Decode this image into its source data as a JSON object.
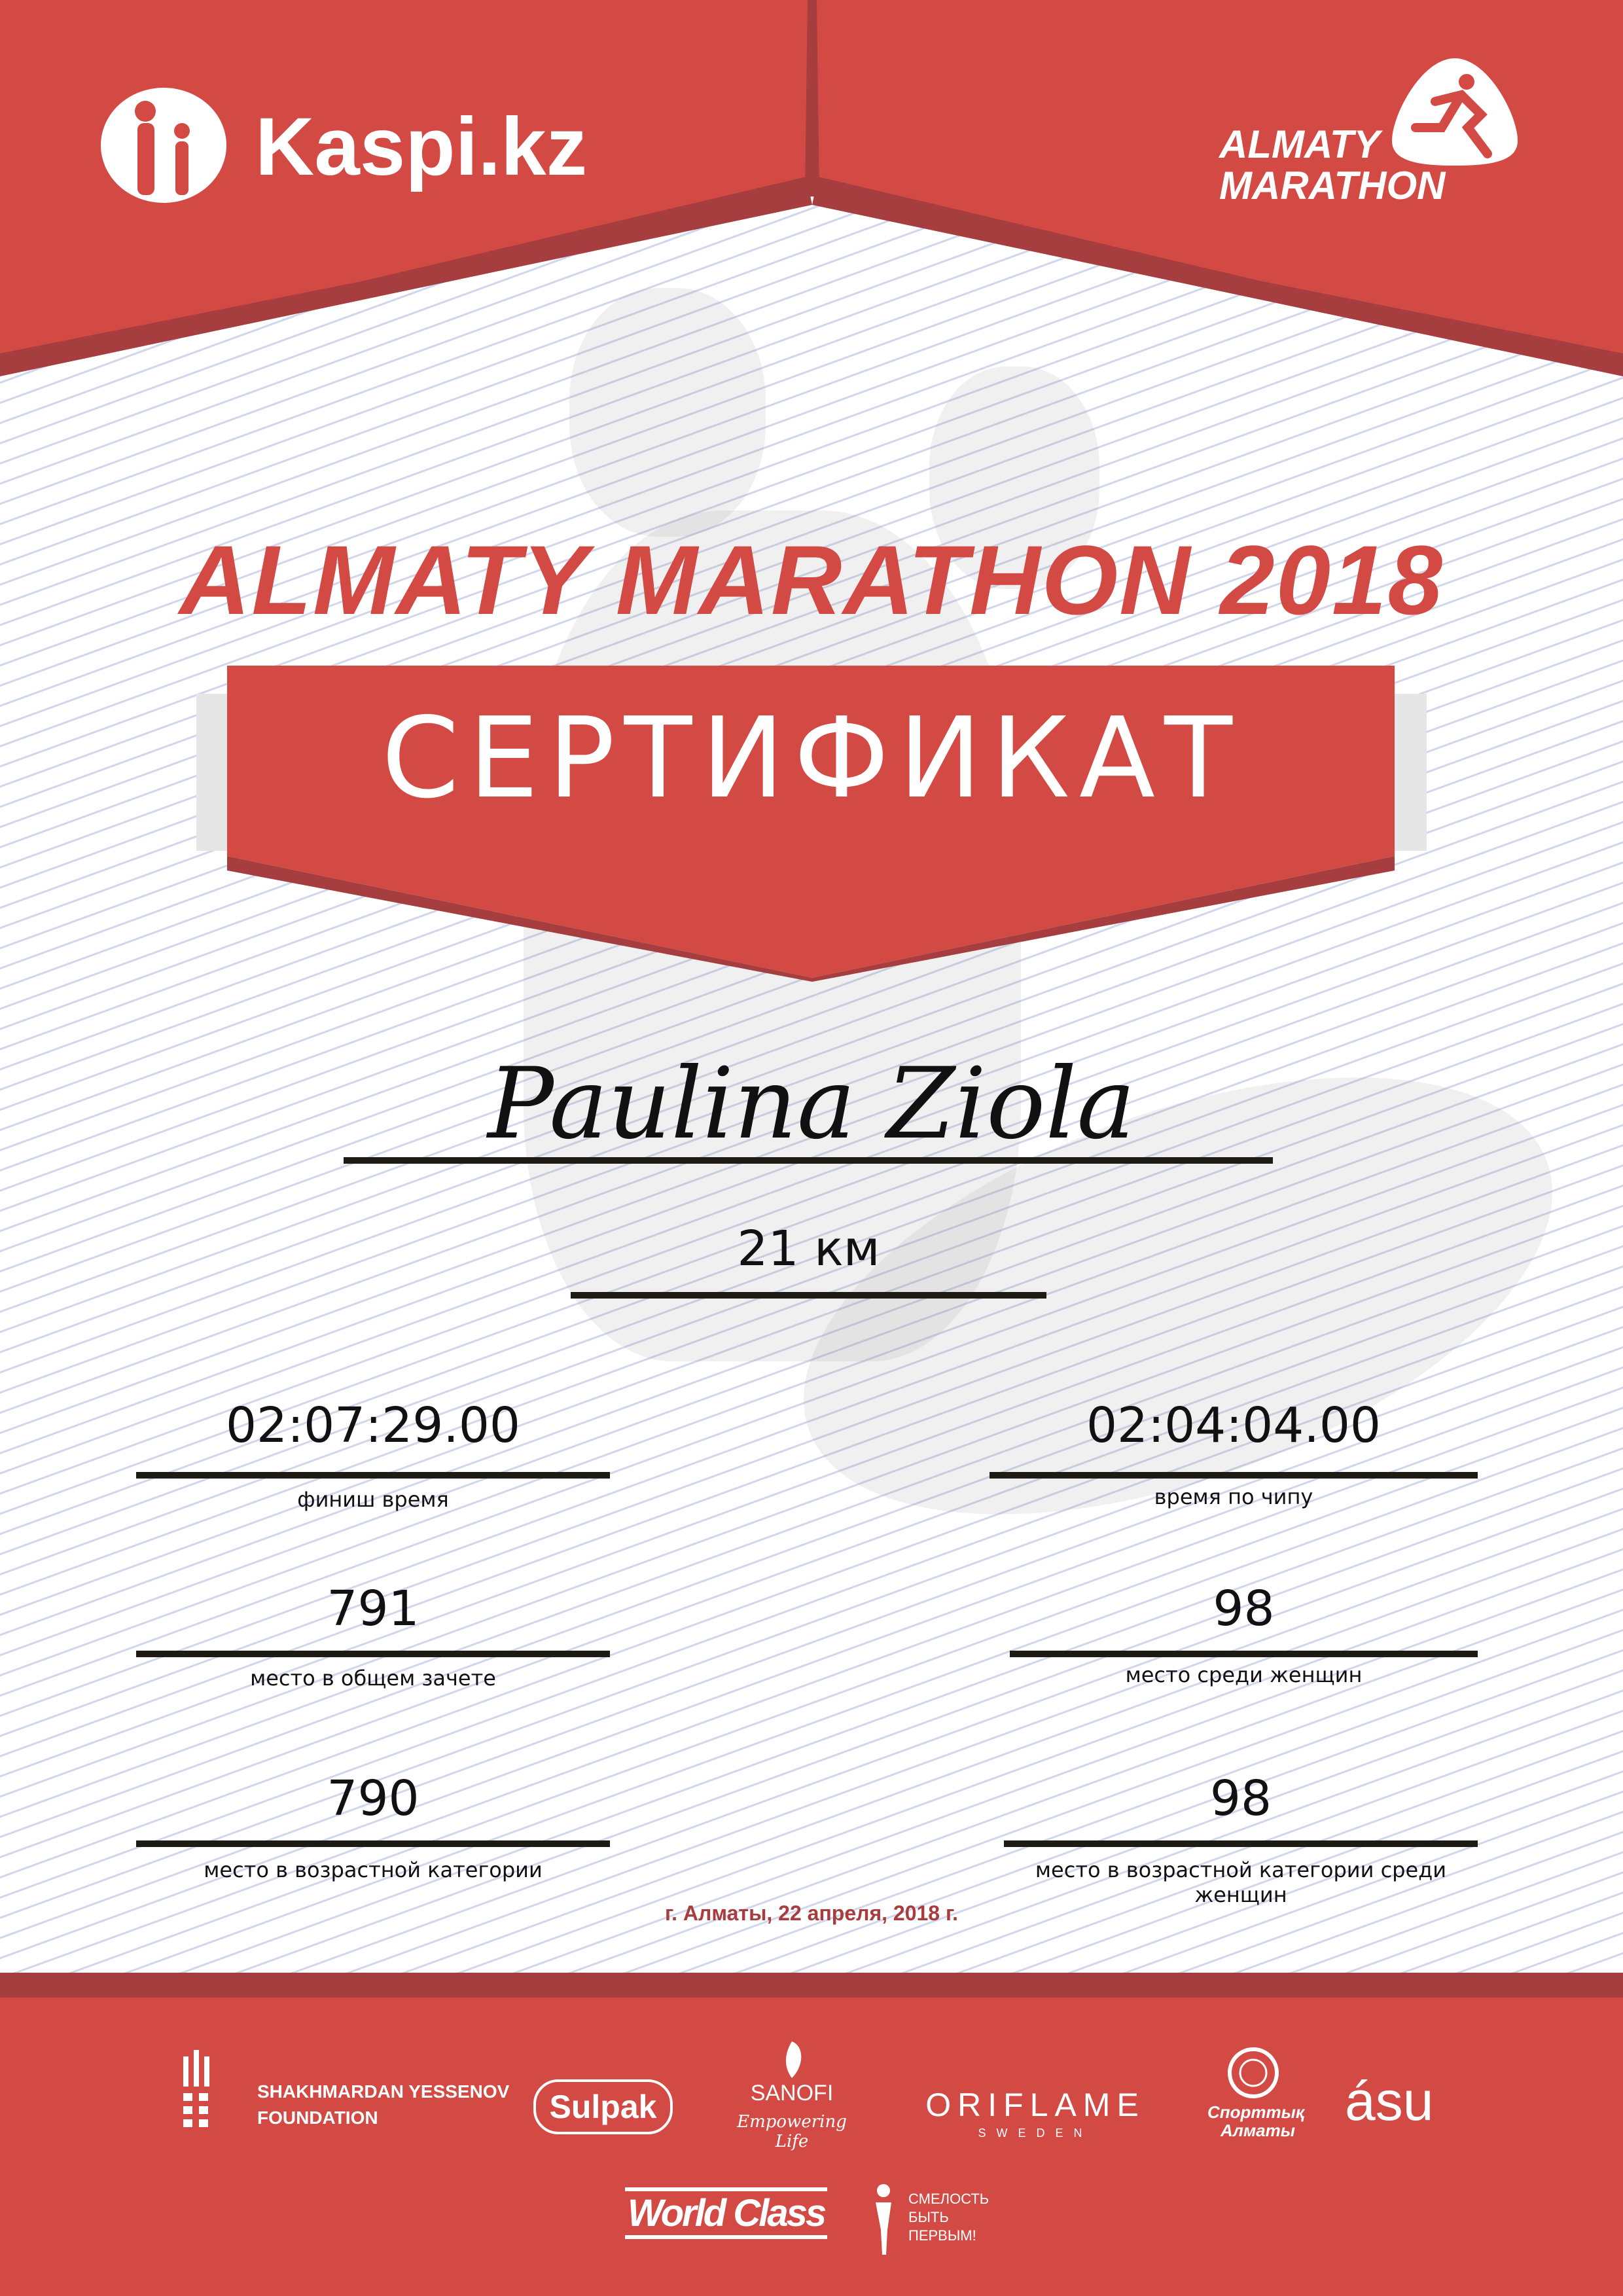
{
  "colors": {
    "brand_red": "#d34a45",
    "dark_red": "#a63d3f",
    "date_red": "#a83c3e"
  },
  "header": {
    "left_logo": {
      "text": "Kaspi.kz",
      "icon": "kaspi-figures-icon"
    },
    "right_logo": {
      "line1": "ALMATY",
      "line2": "MARATHON",
      "icon": "runner-icon"
    }
  },
  "title": "ALMATY MARATHON 2018",
  "certificate_label": "СЕРТИФИКАТ",
  "participant": {
    "name": "Paulina Ziola",
    "distance": "21 км"
  },
  "results": {
    "finish_time": {
      "value": "02:07:29.00",
      "label": "финиш время"
    },
    "chip_time": {
      "value": "02:04:04.00",
      "label": "время по чипу"
    },
    "overall_place": {
      "value": "791",
      "label": "место в общем зачете"
    },
    "women_place": {
      "value": "98",
      "label": "место среди женщин"
    },
    "age_place": {
      "value": "790",
      "label": "место в возрастной категории"
    },
    "age_women_place": {
      "value": "98",
      "label": "место в возрастной категории среди женщин"
    }
  },
  "date": "г. Алматы, 22 апреля, 2018 г.",
  "sponsors": {
    "yessenov": {
      "line1": "SHAKHMARDAN YESSENOV",
      "line2": "FOUNDATION"
    },
    "sulpak": "Sulpak",
    "sanofi": {
      "name": "SANOFI",
      "tagline": "Empowering Life"
    },
    "oriflame": {
      "name": "ORIFLAME",
      "sub": "SWEDEN"
    },
    "sport_almaty": {
      "line1": "Спорттық",
      "line2": "Алматы"
    },
    "asu": "ásu",
    "worldclass": "World Class",
    "fund": {
      "line1": "СМЕЛОСТЬ",
      "line2": "БЫТЬ",
      "line3": "ПЕРВЫМ!"
    }
  }
}
